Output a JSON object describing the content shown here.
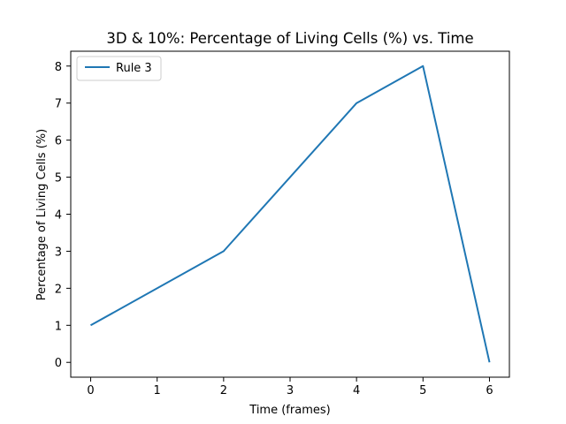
{
  "chart_data": {
    "type": "line",
    "title": "3D & 10%: Percentage of Living Cells (%) vs. Time",
    "xlabel": "Time (frames)",
    "ylabel": "Percentage of Living Cells (%)",
    "x": [
      0,
      2,
      4,
      5,
      6
    ],
    "series": [
      {
        "name": "Rule 3",
        "color": "#1f77b4",
        "values": [
          1,
          3,
          7,
          8,
          0
        ]
      }
    ],
    "xlim": [
      -0.3,
      6.3
    ],
    "ylim": [
      -0.4,
      8.4
    ],
    "xticks": [
      "0",
      "1",
      "2",
      "3",
      "4",
      "5",
      "6"
    ],
    "yticks": [
      "0",
      "1",
      "2",
      "3",
      "4",
      "5",
      "6",
      "7",
      "8"
    ],
    "grid": false,
    "legend": "top-left"
  }
}
